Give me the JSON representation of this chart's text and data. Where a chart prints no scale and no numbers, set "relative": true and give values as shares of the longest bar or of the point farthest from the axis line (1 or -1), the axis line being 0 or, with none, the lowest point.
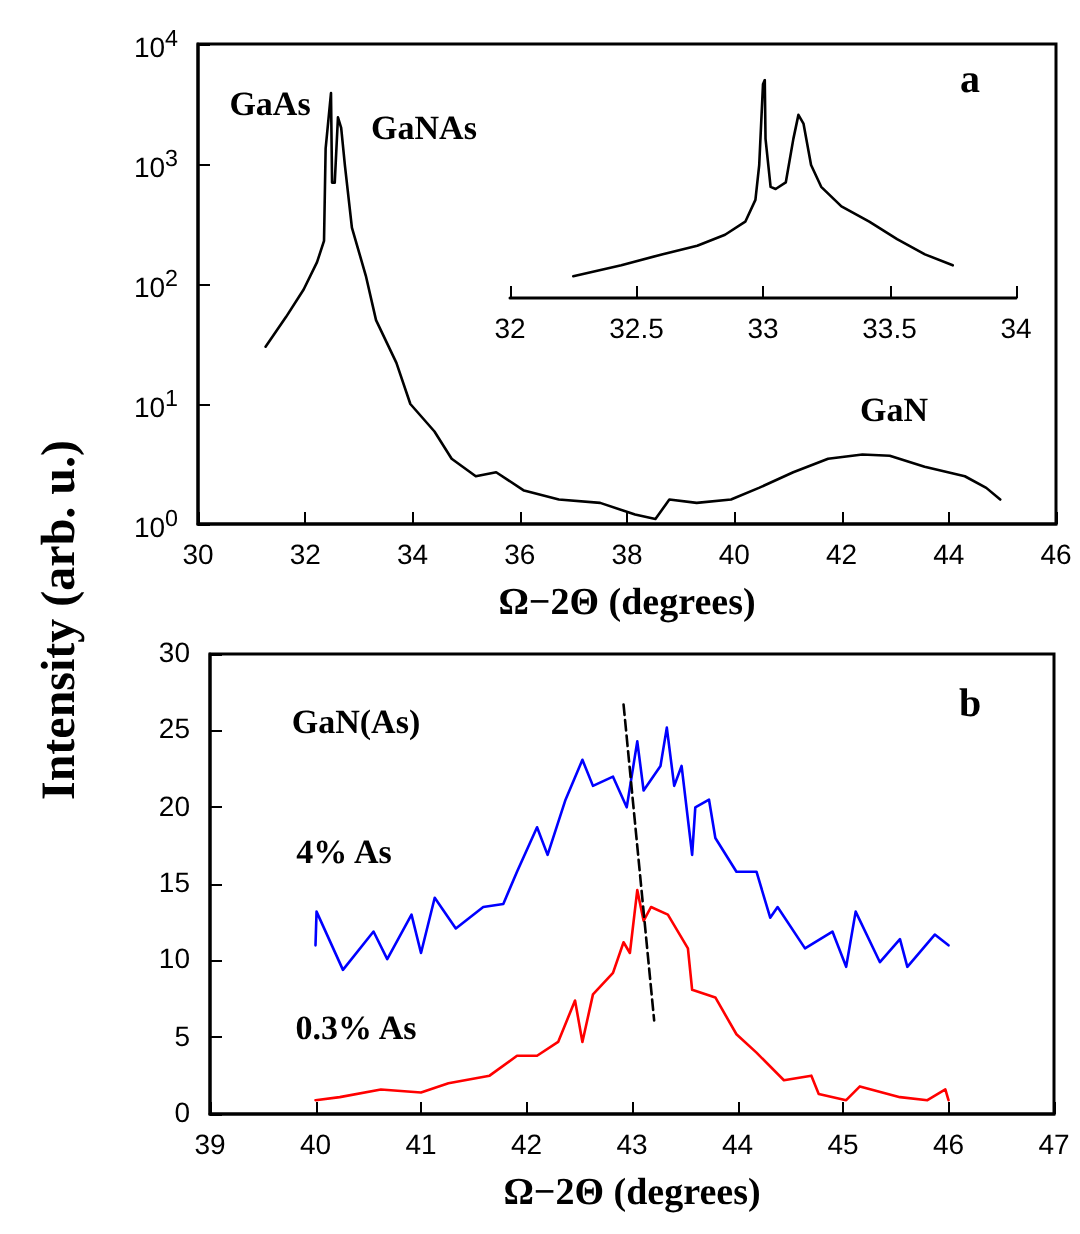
{
  "chart_data": [
    {
      "type": "line",
      "xlabel": "Ω−2Θ (degrees)",
      "ylabel": "Intensity (arb. u.)",
      "log": "y",
      "marker": "none",
      "grid": false,
      "color": "#000000",
      "xlim": [
        30,
        46
      ],
      "xticks": [
        30,
        32,
        34,
        36,
        38,
        40,
        42,
        44,
        46
      ],
      "ylim": [
        1,
        10000
      ],
      "yticks": [
        {
          "value": 1,
          "label": "10$^{0}$"
        },
        {
          "value": 10,
          "label": "10$^{1}$"
        },
        {
          "value": 100,
          "label": "10$^{2}$"
        },
        {
          "value": 1000,
          "label": "10$^{3}$"
        },
        {
          "value": 10000,
          "label": "10$^{4}$"
        }
      ],
      "x": [
        31.26,
        31.64,
        31.97,
        32.22,
        32.35,
        32.38,
        32.48,
        32.5,
        32.55,
        32.61,
        32.67,
        32.74,
        32.87,
        33.13,
        33.32,
        33.7,
        33.96,
        34.41,
        34.73,
        35.18,
        35.56,
        36.08,
        36.73,
        37.5,
        38.15,
        38.53,
        38.79,
        39.3,
        39.94,
        40.46,
        41.1,
        41.75,
        42.39,
        42.9,
        43.55,
        44.3,
        44.7,
        44.96
      ],
      "values": [
        30,
        53,
        90,
        152,
        229,
        1340,
        3900,
        700,
        700,
        2450,
        2000,
        970,
        295,
        117,
        50,
        22,
        10,
        5.9,
        3.5,
        2.5,
        2.7,
        1.9,
        1.6,
        1.5,
        1.2,
        1.1,
        1.6,
        1.5,
        1.6,
        2.0,
        2.7,
        3.5,
        3.8,
        3.7,
        3.0,
        2.5,
        2.0,
        1.6
      ],
      "annotations": [
        "GaAs",
        "GaNAs",
        "GaN",
        "a"
      ]
    },
    {
      "type": "line",
      "relative": true,
      "marker": "none",
      "grid": false,
      "tick_labels": "x",
      "color": "#000000",
      "xlim": [
        32,
        34
      ],
      "xticks": [
        32,
        32.5,
        33,
        33.5,
        34
      ],
      "x": [
        32.25,
        32.44,
        32.6,
        32.74,
        32.85,
        32.93,
        32.97,
        32.985,
        33.0,
        33.007,
        33.01,
        33.03,
        33.05,
        33.09,
        33.12,
        33.14,
        33.16,
        33.19,
        33.23,
        33.31,
        33.42,
        33.53,
        33.64,
        33.75
      ],
      "values": [
        0.1,
        0.15,
        0.2,
        0.24,
        0.29,
        0.35,
        0.45,
        0.61,
        0.98,
        1.0,
        0.73,
        0.51,
        0.5,
        0.53,
        0.73,
        0.84,
        0.8,
        0.61,
        0.51,
        0.42,
        0.35,
        0.27,
        0.2,
        0.15
      ]
    },
    {
      "type": "line",
      "xlabel": "Ω−2Θ (degrees)",
      "marker": "none",
      "grid": false,
      "xlim": [
        39,
        47
      ],
      "xticks": [
        39,
        40,
        41,
        42,
        43,
        44,
        45,
        46,
        47
      ],
      "ylim": [
        0,
        30
      ],
      "yticks": [
        0,
        5,
        10,
        15,
        20,
        25,
        30
      ],
      "series": [
        {
          "color": "#0000ff",
          "x": [
            40.0,
            40.01,
            40.26,
            40.55,
            40.68,
            40.91,
            41.0,
            41.13,
            41.33,
            41.59,
            41.78,
            41.91,
            42.1,
            42.2,
            42.37,
            42.53,
            42.63,
            42.82,
            42.95,
            43.05,
            43.11,
            43.27,
            43.33,
            43.4,
            43.47,
            43.57,
            43.6,
            43.73,
            43.79,
            43.99,
            44.18,
            44.31,
            44.38,
            44.64,
            44.9,
            45.03,
            45.12,
            45.35,
            45.54,
            45.61,
            45.87,
            46.0
          ],
          "values": [
            11.0,
            13.2,
            9.4,
            11.9,
            10.1,
            13.0,
            10.5,
            14.1,
            12.1,
            13.5,
            13.7,
            15.8,
            18.7,
            16.9,
            20.5,
            23.1,
            21.4,
            22.0,
            20.0,
            24.3,
            21.1,
            22.7,
            25.2,
            21.4,
            22.7,
            16.9,
            20.0,
            20.5,
            18.0,
            15.8,
            15.8,
            12.8,
            13.5,
            10.8,
            11.9,
            9.6,
            13.2,
            9.9,
            11.4,
            9.6,
            11.7,
            11.0
          ]
        },
        {
          "color": "#ff0000",
          "x": [
            40.0,
            40.23,
            40.62,
            41.0,
            41.26,
            41.65,
            41.91,
            42.1,
            42.3,
            42.46,
            42.53,
            42.63,
            42.82,
            42.92,
            42.98,
            43.05,
            43.11,
            43.18,
            43.34,
            43.53,
            43.57,
            43.79,
            43.99,
            44.18,
            44.44,
            44.7,
            44.77,
            45.03,
            45.16,
            45.54,
            45.8,
            45.97,
            46.0
          ],
          "values": [
            0.9,
            1.1,
            1.6,
            1.4,
            2.0,
            2.5,
            3.8,
            3.8,
            4.7,
            7.4,
            4.7,
            7.8,
            9.2,
            11.2,
            10.5,
            14.6,
            12.6,
            13.5,
            13.0,
            10.8,
            8.1,
            7.6,
            5.2,
            4.0,
            2.2,
            2.5,
            1.3,
            0.9,
            1.8,
            1.1,
            0.9,
            1.6,
            0.9
          ]
        },
        {
          "type": "line",
          "color": "#000000",
          "line_style": "dashed",
          "x": [
            42.92,
            43.21
          ],
          "values": [
            26.7,
            6.1
          ]
        }
      ],
      "annotations": [
        "GaN(As)",
        "4% As",
        "0.3% As",
        "b"
      ]
    }
  ]
}
